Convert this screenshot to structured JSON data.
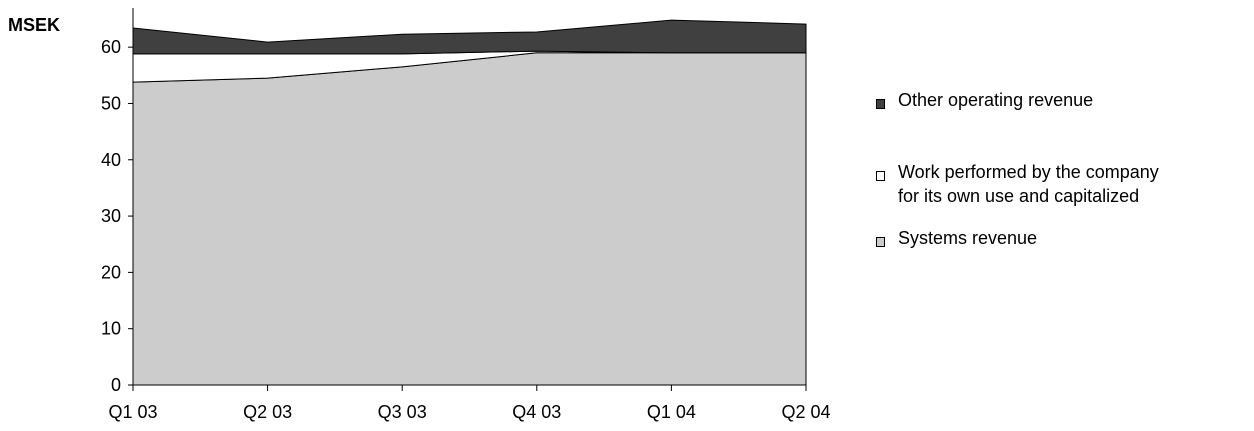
{
  "chart_data": {
    "type": "area",
    "stacked": true,
    "unit_label": "MSEK",
    "categories": [
      "Q1 03",
      "Q2 03",
      "Q3 03",
      "Q4 03",
      "Q1 04",
      "Q2 04"
    ],
    "series": [
      {
        "name": "Systems revenue",
        "values": [
          53.8,
          54.5,
          56.5,
          59.0,
          59.0,
          59.0
        ],
        "color": "#cccccc"
      },
      {
        "name": "Work performed by the company for its own use and capitalized",
        "values": [
          5.0,
          4.3,
          2.3,
          0.3,
          0.0,
          0.0
        ],
        "color": "#ffffff"
      },
      {
        "name": "Other operating revenue",
        "values": [
          4.6,
          2.1,
          3.5,
          3.4,
          5.8,
          5.1
        ],
        "color": "#404040"
      }
    ],
    "legend_order": [
      2,
      1,
      0
    ],
    "ylim": [
      0,
      65
    ],
    "yticks": [
      "0",
      "10",
      "20",
      "30",
      "40",
      "50",
      "60"
    ],
    "grid": false,
    "legend_position": "right"
  }
}
